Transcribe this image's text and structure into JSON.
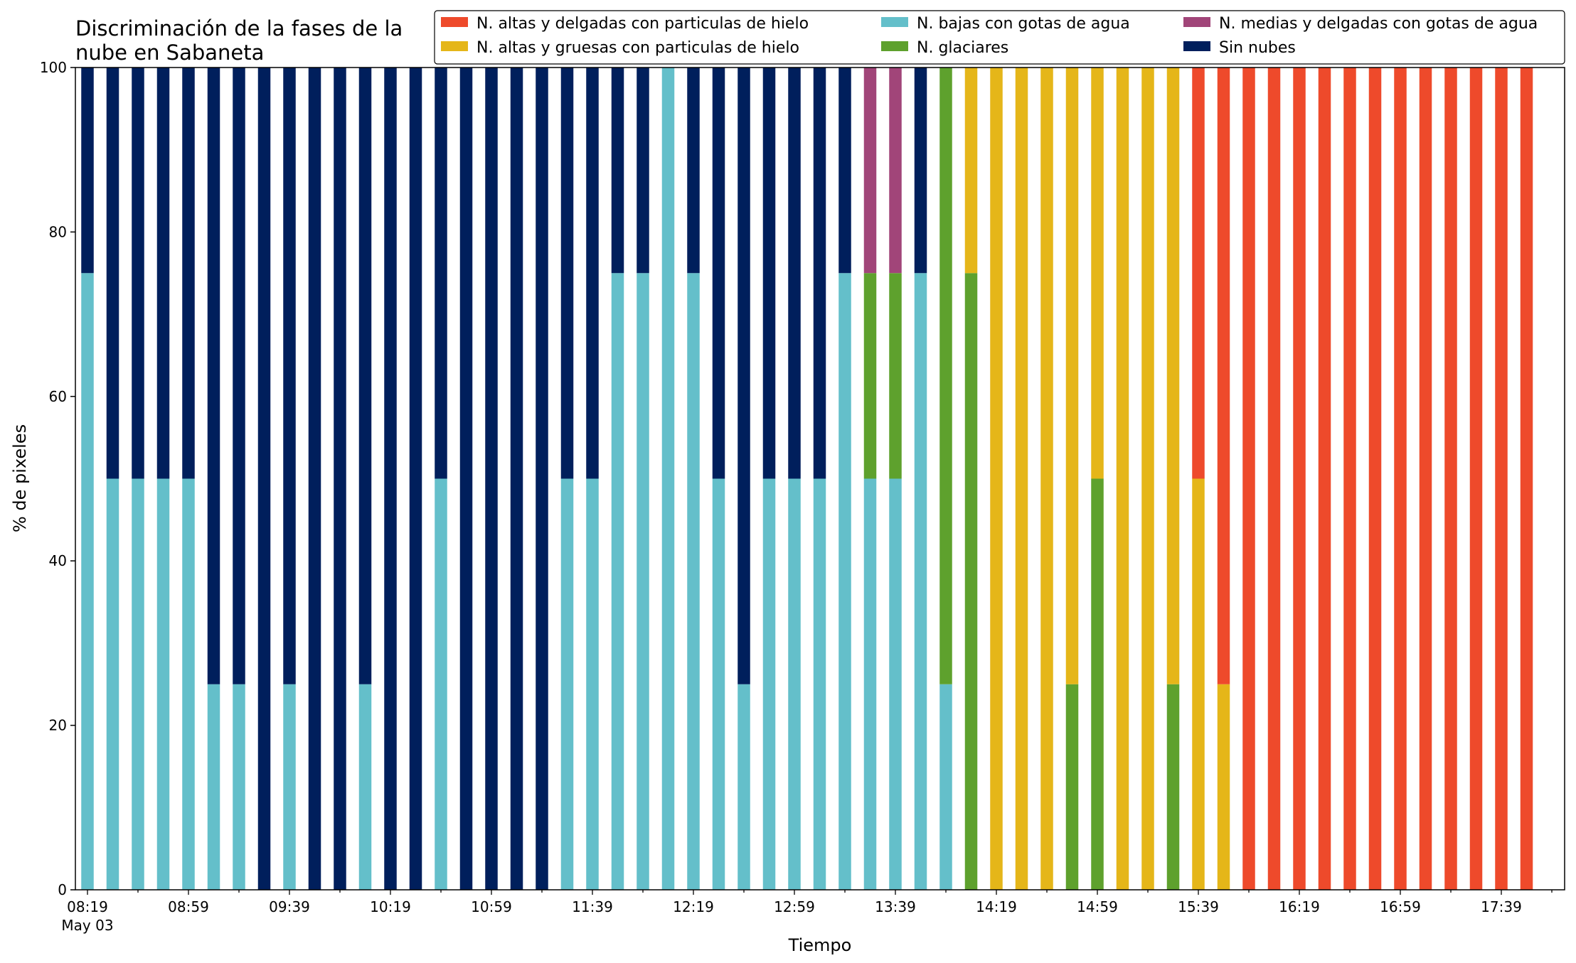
{
  "chart_data": {
    "type": "bar",
    "stacked": true,
    "title_lines": [
      "Discriminación de la fases de la",
      "nube en Sabaneta"
    ],
    "xlabel": "Tiempo",
    "ylabel": "% de pixeles",
    "ylim": [
      0,
      100
    ],
    "yticks": [
      0,
      20,
      40,
      60,
      80,
      100
    ],
    "grid": false,
    "legend_position": "top-right",
    "date_label": "May 03",
    "x_tick_labels": [
      "08:19",
      "08:59",
      "09:39",
      "10:19",
      "10:59",
      "11:39",
      "12:19",
      "12:59",
      "13:39",
      "14:19",
      "14:59",
      "15:39",
      "16:19",
      "16:59",
      "17:39"
    ],
    "categories": [
      "08:19",
      "08:29",
      "08:39",
      "08:49",
      "08:59",
      "09:09",
      "09:19",
      "09:29",
      "09:39",
      "09:49",
      "09:59",
      "10:09",
      "10:19",
      "10:29",
      "10:39",
      "10:49",
      "10:59",
      "11:09",
      "11:19",
      "11:29",
      "11:39",
      "11:49",
      "11:59",
      "12:09",
      "12:19",
      "12:29",
      "12:39",
      "12:49",
      "12:59",
      "13:09",
      "13:19",
      "13:29",
      "13:39",
      "13:49",
      "13:59",
      "14:09",
      "14:19",
      "14:29",
      "14:39",
      "14:49",
      "14:59",
      "15:09",
      "15:19",
      "15:29",
      "15:39",
      "15:49",
      "15:59",
      "16:09",
      "16:19",
      "16:29",
      "16:39",
      "16:49",
      "16:59",
      "17:09",
      "17:19",
      "17:29",
      "17:39",
      "17:49"
    ],
    "series": [
      {
        "name": "N. altas y delgadas con particulas de hielo",
        "color": "#ee4a2b",
        "values": [
          0,
          0,
          0,
          0,
          0,
          0,
          0,
          0,
          0,
          0,
          0,
          0,
          0,
          0,
          0,
          0,
          0,
          0,
          0,
          0,
          0,
          0,
          0,
          0,
          0,
          0,
          0,
          0,
          0,
          0,
          0,
          0,
          0,
          0,
          0,
          0,
          0,
          0,
          0,
          0,
          0,
          0,
          0,
          0,
          50,
          75,
          100,
          100,
          100,
          100,
          100,
          100,
          100,
          100,
          100,
          100,
          100,
          100
        ]
      },
      {
        "name": "N. altas y gruesas con particulas de hielo",
        "color": "#e5b619",
        "values": [
          0,
          0,
          0,
          0,
          0,
          0,
          0,
          0,
          0,
          0,
          0,
          0,
          0,
          0,
          0,
          0,
          0,
          0,
          0,
          0,
          0,
          0,
          0,
          0,
          0,
          0,
          0,
          0,
          0,
          0,
          0,
          0,
          0,
          0,
          0,
          25,
          100,
          100,
          100,
          75,
          50,
          100,
          100,
          75,
          50,
          25,
          0,
          0,
          0,
          0,
          0,
          0,
          0,
          0,
          0,
          0,
          0,
          0
        ]
      },
      {
        "name": "N. bajas con gotas de agua",
        "color": "#64bfca",
        "values": [
          75,
          50,
          50,
          50,
          50,
          25,
          25,
          0,
          25,
          0,
          0,
          25,
          0,
          0,
          50,
          0,
          0,
          0,
          0,
          50,
          50,
          75,
          75,
          100,
          75,
          50,
          25,
          50,
          50,
          50,
          75,
          50,
          50,
          75,
          25,
          0,
          0,
          0,
          0,
          0,
          0,
          0,
          0,
          0,
          0,
          0,
          0,
          0,
          0,
          0,
          0,
          0,
          0,
          0,
          0,
          0,
          0,
          0
        ]
      },
      {
        "name": "N. glaciares",
        "color": "#5ea12d",
        "values": [
          0,
          0,
          0,
          0,
          0,
          0,
          0,
          0,
          0,
          0,
          0,
          0,
          0,
          0,
          0,
          0,
          0,
          0,
          0,
          0,
          0,
          0,
          0,
          0,
          0,
          0,
          0,
          0,
          0,
          0,
          0,
          25,
          25,
          0,
          75,
          75,
          0,
          0,
          0,
          25,
          50,
          0,
          0,
          25,
          0,
          0,
          0,
          0,
          0,
          0,
          0,
          0,
          0,
          0,
          0,
          0,
          0,
          0
        ]
      },
      {
        "name": "N. medias y delgadas con gotas de agua",
        "color": "#a14579",
        "values": [
          0,
          0,
          0,
          0,
          0,
          0,
          0,
          0,
          0,
          0,
          0,
          0,
          0,
          0,
          0,
          0,
          0,
          0,
          0,
          0,
          0,
          0,
          0,
          0,
          0,
          0,
          0,
          0,
          0,
          0,
          0,
          25,
          25,
          0,
          0,
          0,
          0,
          0,
          0,
          0,
          0,
          0,
          0,
          0,
          0,
          0,
          0,
          0,
          0,
          0,
          0,
          0,
          0,
          0,
          0,
          0,
          0,
          0
        ]
      },
      {
        "name": "Sin nubes",
        "color": "#001f5c",
        "values": [
          25,
          50,
          50,
          50,
          50,
          75,
          75,
          100,
          75,
          100,
          100,
          75,
          100,
          100,
          50,
          100,
          100,
          100,
          100,
          50,
          50,
          25,
          25,
          0,
          25,
          50,
          75,
          50,
          50,
          50,
          25,
          0,
          0,
          25,
          0,
          0,
          0,
          0,
          0,
          0,
          0,
          0,
          0,
          0,
          0,
          0,
          0,
          0,
          0,
          0,
          0,
          0,
          0,
          0,
          0,
          0,
          0,
          0
        ]
      }
    ],
    "stack_order": [
      "N. bajas con gotas de agua",
      "N. glaciares",
      "N. medias y delgadas con gotas de agua",
      "N. altas y gruesas con particulas de hielo",
      "N. altas y delgadas con particulas de hielo",
      "Sin nubes"
    ],
    "legend_order": [
      0,
      1,
      2,
      3,
      4,
      5
    ]
  }
}
